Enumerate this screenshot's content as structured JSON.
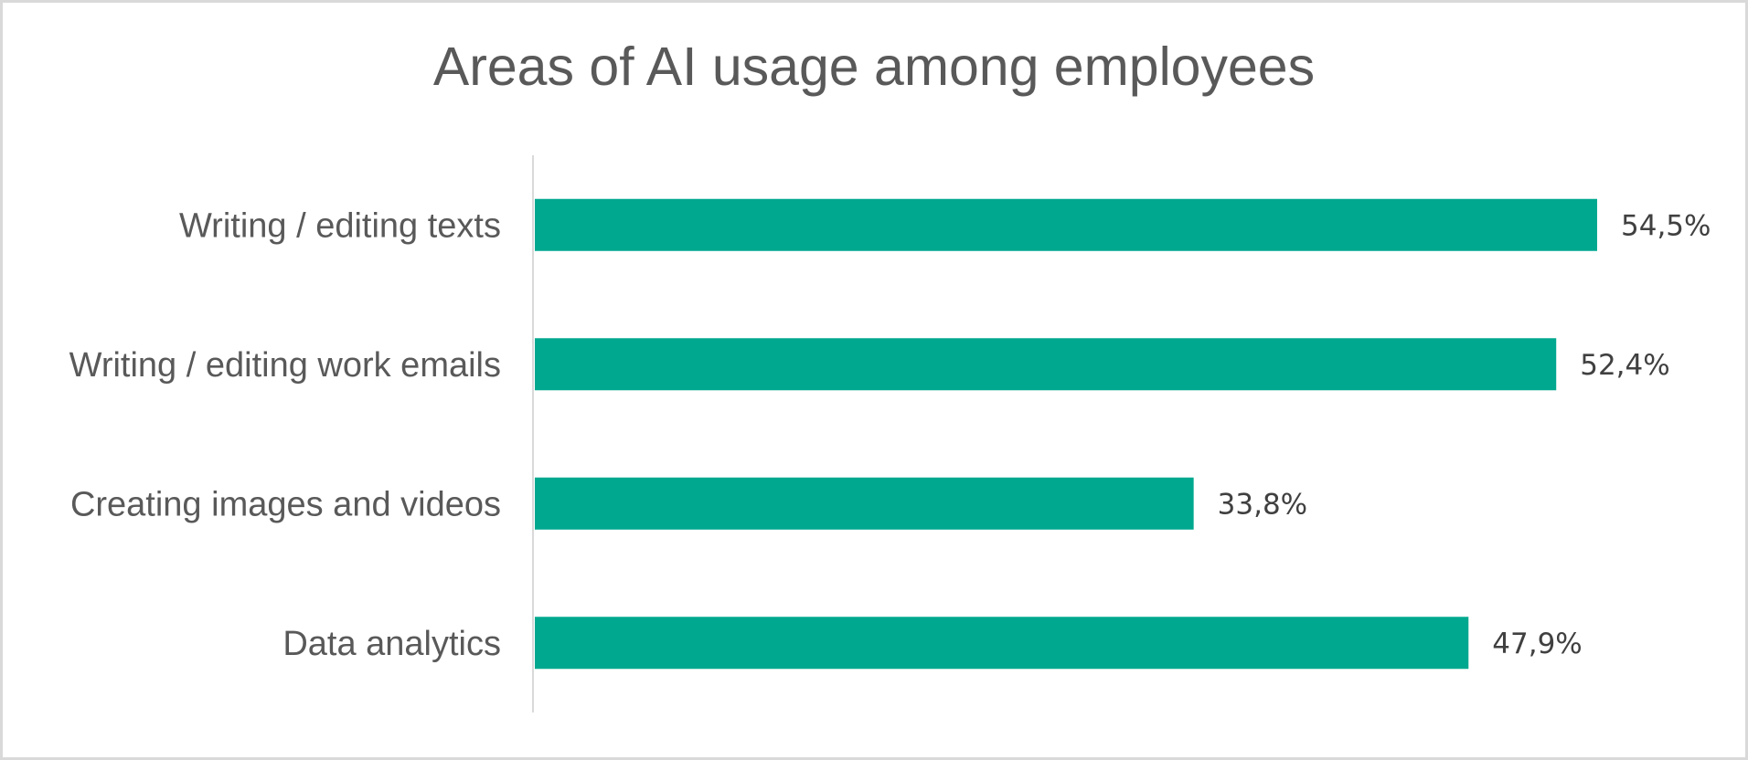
{
  "chart_data": {
    "type": "bar",
    "orientation": "horizontal",
    "title": "Areas of AI usage among employees",
    "categories": [
      "Writing / editing texts",
      "Writing / editing work emails",
      "Creating images and videos",
      "Data analytics"
    ],
    "values": [
      54.5,
      52.4,
      33.8,
      47.9
    ],
    "value_labels": [
      "54,5%",
      "52,4%",
      "33,8%",
      "47,9%"
    ],
    "unit": "%",
    "xlim": [
      0,
      54.5
    ],
    "grid": false,
    "legend": "none",
    "bar_color": "#00A88F"
  }
}
